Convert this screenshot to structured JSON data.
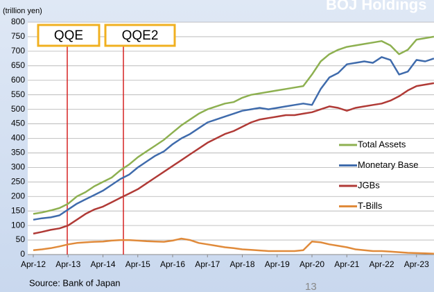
{
  "chart_data": {
    "type": "line",
    "title": "BOJ Holdings",
    "y_label": "(trillion yen)",
    "source": "Source: Bank of Japan",
    "page_number": "13",
    "annotations": [
      "QQE",
      "QQE2"
    ],
    "categories": [
      "Apr-12",
      null,
      null,
      null,
      "Apr-13",
      null,
      null,
      null,
      "Apr-14",
      null,
      null,
      null,
      "Apr-15",
      null,
      null,
      null,
      "Apr-16",
      null,
      null,
      null,
      "Apr-17",
      null,
      null,
      null,
      "Apr-18",
      null,
      null,
      null,
      "Apr-19",
      null,
      null,
      null,
      "Apr-20",
      null,
      null,
      null,
      "Apr-21",
      null,
      null,
      null,
      "Apr-22",
      null,
      null,
      null,
      "Apr-23",
      null,
      null
    ],
    "series": [
      {
        "name": "Total Assets",
        "color": "#8db050",
        "values": [
          140,
          145,
          152,
          160,
          175,
          200,
          215,
          235,
          250,
          265,
          290,
          310,
          335,
          355,
          375,
          395,
          420,
          445,
          465,
          485,
          500,
          510,
          520,
          525,
          540,
          550,
          555,
          560,
          565,
          570,
          575,
          580,
          620,
          665,
          690,
          705,
          715,
          720,
          725,
          730,
          735,
          720,
          690,
          705,
          740,
          745,
          750
        ]
      },
      {
        "name": "Monetary Base",
        "color": "#3f6bac",
        "values": [
          120,
          125,
          128,
          135,
          155,
          175,
          190,
          205,
          220,
          240,
          260,
          275,
          300,
          320,
          340,
          355,
          380,
          400,
          415,
          435,
          455,
          465,
          475,
          485,
          495,
          500,
          505,
          500,
          505,
          510,
          515,
          520,
          515,
          570,
          610,
          625,
          655,
          660,
          665,
          660,
          680,
          670,
          620,
          630,
          670,
          665,
          675
        ]
      },
      {
        "name": "JGBs",
        "color": "#b03a36",
        "values": [
          72,
          78,
          85,
          90,
          100,
          120,
          140,
          155,
          165,
          180,
          195,
          210,
          225,
          245,
          265,
          285,
          305,
          325,
          345,
          365,
          385,
          400,
          415,
          425,
          440,
          455,
          465,
          470,
          475,
          480,
          480,
          485,
          490,
          500,
          510,
          505,
          495,
          505,
          510,
          515,
          520,
          530,
          545,
          565,
          580,
          585,
          590
        ]
      },
      {
        "name": "T-Bills",
        "color": "#e08a3a",
        "values": [
          15,
          18,
          22,
          28,
          35,
          40,
          42,
          44,
          45,
          48,
          50,
          50,
          48,
          46,
          45,
          44,
          48,
          55,
          50,
          40,
          35,
          30,
          25,
          22,
          18,
          16,
          14,
          12,
          12,
          12,
          12,
          15,
          45,
          42,
          35,
          30,
          25,
          18,
          15,
          12,
          12,
          10,
          8,
          6,
          5,
          4,
          3
        ]
      }
    ],
    "ylim": [
      0,
      800
    ],
    "yticks": [
      0,
      50,
      100,
      150,
      200,
      250,
      300,
      350,
      400,
      450,
      500,
      550,
      600,
      650,
      700,
      750,
      800
    ],
    "grid": true,
    "legend": "right"
  }
}
